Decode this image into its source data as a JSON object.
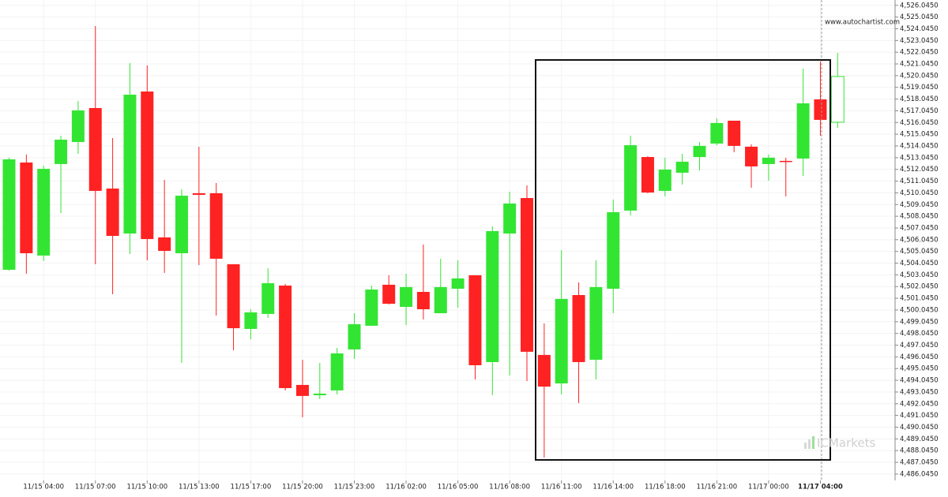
{
  "chart_data": {
    "type": "candlestick",
    "source": "www.autochartist.com",
    "watermark": "ICMarkets",
    "up_color": "#33e533",
    "down_color": "#ff2222",
    "grid": true,
    "ylim": [
      4485.5,
      4526.5
    ],
    "yticks": [
      {
        "value": 4486.045,
        "label": "4,486.0450"
      },
      {
        "value": 4487.045,
        "label": "4,487.0450"
      },
      {
        "value": 4488.045,
        "label": "4,488.0450"
      },
      {
        "value": 4489.045,
        "label": "4,489.0450"
      },
      {
        "value": 4490.045,
        "label": "4,490.0450"
      },
      {
        "value": 4491.045,
        "label": "4,491.0450"
      },
      {
        "value": 4492.045,
        "label": "4,492.0450"
      },
      {
        "value": 4493.045,
        "label": "4,493.0450"
      },
      {
        "value": 4494.045,
        "label": "4,494.0450"
      },
      {
        "value": 4495.045,
        "label": "4,495.0450"
      },
      {
        "value": 4496.045,
        "label": "4,496.0450"
      },
      {
        "value": 4497.045,
        "label": "4,497.0450"
      },
      {
        "value": 4498.045,
        "label": "4,498.0450"
      },
      {
        "value": 4499.045,
        "label": "4,499.0450"
      },
      {
        "value": 4500.045,
        "label": "4,500.0450"
      },
      {
        "value": 4501.045,
        "label": "4,501.0450"
      },
      {
        "value": 4502.045,
        "label": "4,502.0450"
      },
      {
        "value": 4503.045,
        "label": "4,503.0450"
      },
      {
        "value": 4504.045,
        "label": "4,504.0450"
      },
      {
        "value": 4505.045,
        "label": "4,505.0450"
      },
      {
        "value": 4506.045,
        "label": "4,506.0450"
      },
      {
        "value": 4507.045,
        "label": "4,507.0450"
      },
      {
        "value": 4508.045,
        "label": "4,508.0450"
      },
      {
        "value": 4509.045,
        "label": "4,509.0450"
      },
      {
        "value": 4510.045,
        "label": "4,510.0450"
      },
      {
        "value": 4511.045,
        "label": "4,511.0450"
      },
      {
        "value": 4512.045,
        "label": "4,512.0450"
      },
      {
        "value": 4513.045,
        "label": "4,513.0450"
      },
      {
        "value": 4514.045,
        "label": "4,514.0450"
      },
      {
        "value": 4515.045,
        "label": "4,515.0450"
      },
      {
        "value": 4516.045,
        "label": "4,516.0450"
      },
      {
        "value": 4517.045,
        "label": "4,517.0450"
      },
      {
        "value": 4518.045,
        "label": "4,518.0450"
      },
      {
        "value": 4519.045,
        "label": "4,519.0450"
      },
      {
        "value": 4520.045,
        "label": "4,520.0450"
      },
      {
        "value": 4521.045,
        "label": "4,521.0450"
      },
      {
        "value": 4522.045,
        "label": "4,522.0450"
      },
      {
        "value": 4523.045,
        "label": "4,523.0450"
      },
      {
        "value": 4524.045,
        "label": "4,524.0450"
      },
      {
        "value": 4525.045,
        "label": "4,525.0450"
      },
      {
        "value": 4526.045,
        "label": "4,526.0450"
      }
    ],
    "categories": [
      null,
      null,
      "11/15 04:00",
      null,
      null,
      "11/15 07:00",
      null,
      null,
      "11/15 10:00",
      null,
      null,
      "11/15 13:00",
      null,
      null,
      "11/15 17:00",
      null,
      null,
      "11/15 20:00",
      null,
      null,
      "11/15 23:00",
      null,
      null,
      "11/16 02:00",
      null,
      null,
      "11/16 05:00",
      null,
      null,
      "11/16 08:00",
      null,
      null,
      "11/16 11:00",
      null,
      null,
      "11/16 14:00",
      null,
      null,
      "11/16 18:00",
      null,
      null,
      "11/16 21:00",
      null,
      null,
      "11/17 00:00",
      null,
      null,
      "11/17 04:00",
      null
    ],
    "open": [
      4503.48,
      4512.63,
      4504.69,
      4512.5,
      4514.38,
      4517.28,
      4510.41,
      4506.57,
      4518.69,
      4506.24,
      4504.89,
      4510.01,
      4510.01,
      4503.95,
      4498.43,
      4499.71,
      4502.13,
      4493.65,
      4492.77,
      4493.18,
      4496.68,
      4498.7,
      4502.2,
      4500.31,
      4501.59,
      4499.77,
      4501.86,
      4503.01,
      4495.6,
      4506.57,
      4509.6,
      4496.21,
      4493.78,
      4501.32,
      4495.8,
      4501.86,
      4508.53,
      4513.1,
      4510.21,
      4511.76,
      4513.1,
      4514.25,
      4516.2,
      4513.98,
      4512.5,
      4512.77,
      4512.97,
      4518.02,
      4516.07
    ],
    "high": [
      4513.04,
      4513.31,
      4512.36,
      4514.92,
      4517.88,
      4524.28,
      4514.72,
      4521.11,
      4520.91,
      4511.15,
      4510.34,
      4513.98,
      4510.88,
      4503.95,
      4500.11,
      4503.61,
      4502.26,
      4495.8,
      4495.53,
      4496.81,
      4499.77,
      4502.13,
      4503.01,
      4503.14,
      4505.63,
      4504.42,
      4504.28,
      4503.01,
      4507.18,
      4510.14,
      4510.68,
      4498.9,
      4505.16,
      4502.4,
      4504.28,
      4509.47,
      4514.92,
      4513.17,
      4513.04,
      4513.37,
      4514.38,
      4516.4,
      4516.2,
      4514.18,
      4513.31,
      4513.04,
      4520.64,
      4521.25,
      4521.99
    ],
    "low": [
      4503.41,
      4503.14,
      4504.22,
      4508.32,
      4513.37,
      4503.95,
      4501.39,
      4504.82,
      4504.28,
      4503.21,
      4495.53,
      4503.88,
      4499.57,
      4496.61,
      4497.55,
      4499.37,
      4493.18,
      4490.89,
      4492.44,
      4492.84,
      4495.87,
      4498.7,
      4500.51,
      4498.76,
      4499.24,
      4499.77,
      4500.25,
      4494.12,
      4492.77,
      4494.46,
      4493.98,
      4487.45,
      4492.84,
      4492.1,
      4494.12,
      4499.77,
      4508.12,
      4510.01,
      4509.74,
      4510.75,
      4511.96,
      4514.11,
      4513.51,
      4510.48,
      4511.08,
      4509.74,
      4511.49,
      4514.92,
      4515.59
    ],
    "close": [
      4512.9,
      4504.89,
      4512.09,
      4514.58,
      4517.08,
      4510.21,
      4506.37,
      4518.42,
      4506.1,
      4505.09,
      4509.8,
      4509.87,
      4504.42,
      4498.49,
      4499.84,
      4502.33,
      4493.38,
      4492.71,
      4492.91,
      4496.34,
      4498.83,
      4501.79,
      4500.58,
      4502.0,
      4500.11,
      4502.0,
      4502.74,
      4495.33,
      4506.78,
      4509.13,
      4496.48,
      4493.51,
      4500.99,
      4495.6,
      4502.0,
      4508.39,
      4514.11,
      4510.07,
      4512.03,
      4512.7,
      4514.05,
      4516.0,
      4514.05,
      4512.3,
      4513.04,
      4512.7,
      4517.68,
      4516.27,
      4519.97
    ]
  }
}
